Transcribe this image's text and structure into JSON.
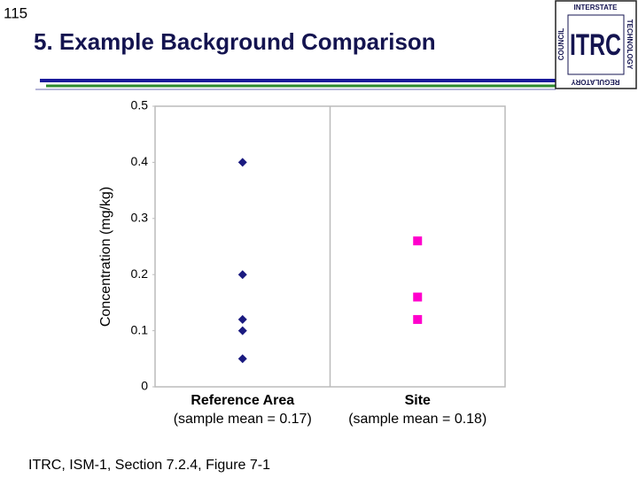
{
  "slide_number": "115",
  "title": "5. Example Background Comparison",
  "logo": {
    "center": "ITRC",
    "top": "INTERSTATE",
    "right": "TECHNOLOGY",
    "bottom": "REGULATORY",
    "left": "COUNCIL"
  },
  "footer": "ITRC, ISM-1, Section 7.2.4, Figure 7-1",
  "chart_data": {
    "type": "strip",
    "ylabel": "Concentration (mg/kg)",
    "categories": [
      "Reference Area",
      "Site"
    ],
    "category_notes": [
      "(sample mean = 0.17)",
      "(sample mean = 0.18)"
    ],
    "values": [
      [
        0.4,
        0.2,
        0.12,
        0.1,
        0.05
      ],
      [
        0.26,
        0.16,
        0.12
      ]
    ],
    "colors": [
      "#1a1a80",
      "#ff00cc"
    ],
    "markers": [
      "diamond",
      "square"
    ],
    "ylim": [
      0,
      0.5
    ],
    "yticks": [
      0,
      0.1,
      0.2,
      0.3,
      0.4,
      0.5
    ],
    "grid": false
  }
}
